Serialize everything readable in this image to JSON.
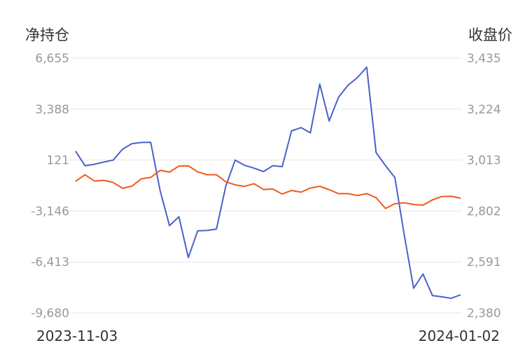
{
  "chart_data": {
    "type": "line",
    "left_axis": {
      "title": "净持仓",
      "ticks": [
        "6,655",
        "3,388",
        "121",
        "-3,146",
        "-6,413",
        "-9,680"
      ],
      "range": [
        -9680,
        6655
      ]
    },
    "right_axis": {
      "title": "收盘价",
      "ticks": [
        "3,435",
        "3,224",
        "3,013",
        "2,802",
        "2,591",
        "2,380"
      ],
      "range": [
        2380,
        3435
      ]
    },
    "x_labels": {
      "start": "2023-11-03",
      "end": "2024-01-02"
    },
    "grid": true,
    "series": [
      {
        "axis": "left",
        "color": "#4a61c8",
        "values": [
          690,
          -243,
          -154,
          -10,
          116,
          815,
          1170,
          1247,
          1256,
          -1830,
          -4090,
          -3516,
          -6130,
          -4421,
          -4397,
          -4310,
          -1550,
          116,
          -219,
          -398,
          -620,
          -247,
          -303,
          1990,
          2200,
          1860,
          4990,
          2620,
          4140,
          4910,
          5400,
          6075,
          598,
          -240,
          -1000,
          -4680,
          -8100,
          -7190,
          -8570,
          -8650,
          -8740,
          -8520
        ]
      },
      {
        "axis": "right",
        "color": "#f05a1a",
        "values": [
          2925,
          2952,
          2926,
          2929,
          2920,
          2896,
          2905,
          2935,
          2941,
          2970,
          2963,
          2988,
          2989,
          2964,
          2952,
          2952,
          2923,
          2910,
          2904,
          2915,
          2891,
          2893,
          2872,
          2887,
          2880,
          2897,
          2904,
          2890,
          2874,
          2874,
          2866,
          2874,
          2857,
          2812,
          2832,
          2836,
          2829,
          2826,
          2848,
          2862,
          2863,
          2855
        ]
      }
    ]
  }
}
